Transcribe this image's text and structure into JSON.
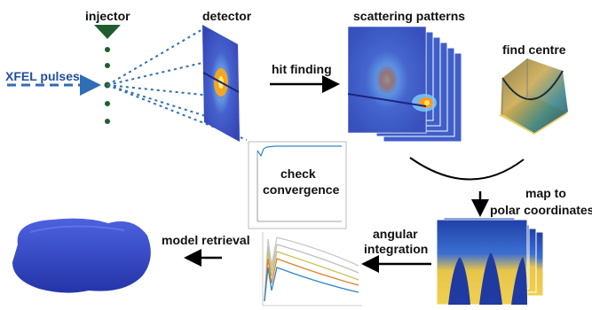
{
  "labels": {
    "injector": "injector",
    "detector": "detector",
    "xfel_pulses": "XFEL pulses",
    "hit_finding": "hit finding",
    "scattering_patterns": "scattering patterns",
    "find_centre": "find centre",
    "check": "check",
    "convergence": "convergence",
    "map_to": "map to",
    "polar_coordinates": "polar coordinates",
    "angular": "angular",
    "integration": "integration",
    "model_retrieval": "model retrieval"
  },
  "colors": {
    "pulse_blue": "#2f6db5",
    "dot_green": "#1f5e2c",
    "arrow": "#000000",
    "detector_bg": "#3a4fc0",
    "pattern_bg": "#3f5fc8",
    "polar_bg": "#2a48b0",
    "polar_bright": "#f5d040",
    "surface_yellow": "#e9c95a",
    "blob_blue": "#3347c8"
  },
  "icons": {
    "injector": "nozzle-triangle-icon",
    "droplets": "droplet-dots-icon"
  }
}
